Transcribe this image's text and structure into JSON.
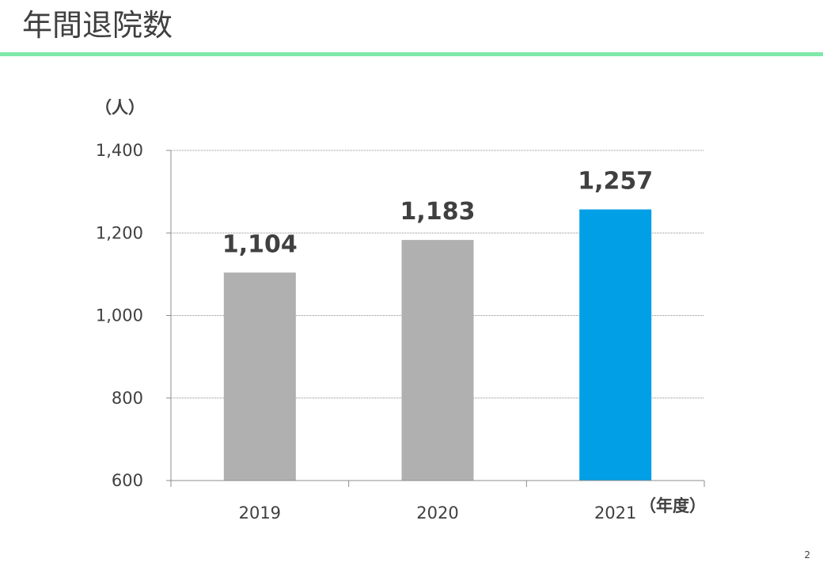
{
  "slide": {
    "title": "年間退院数",
    "page_number": "2",
    "rule_color": "#7ee8a8"
  },
  "chart_data": {
    "type": "bar",
    "title": "",
    "categories": [
      "2019",
      "2020",
      "2021"
    ],
    "series": [
      {
        "values": [
          1104,
          1183,
          1257
        ],
        "colors": [
          "#b0b0b0",
          "#b0b0b0",
          "#009fe6"
        ]
      }
    ],
    "data_labels": [
      "1,104",
      "1,183",
      "1,257"
    ],
    "y_unit": "（人）",
    "x_unit": "（年度）",
    "ylim": [
      600,
      1400
    ],
    "yticks": [
      600,
      800,
      1000,
      1200,
      1400
    ],
    "ytick_labels": [
      "600",
      "800",
      "1,000",
      "1,200",
      "1,400"
    ],
    "grid": true,
    "legend": "none"
  }
}
